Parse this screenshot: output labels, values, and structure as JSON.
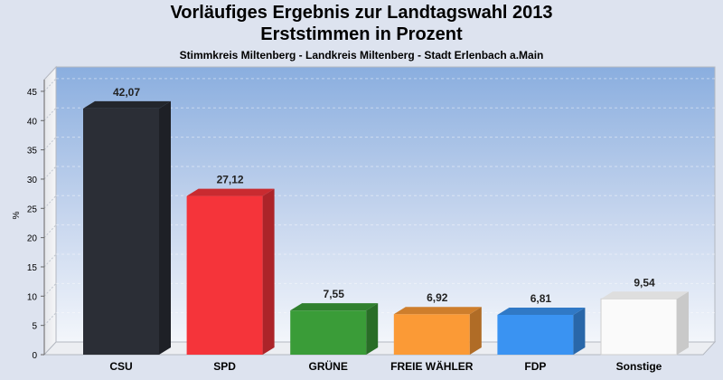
{
  "header": {
    "title": "Vorläufiges Ergebnis zur Landtagswahl 2013",
    "subtitle": "Erststimmen in Prozent",
    "region": "Stimmkreis Miltenberg - Landkreis Miltenberg - Stadt Erlenbach a.Main"
  },
  "chart_data": {
    "type": "bar",
    "title": "Vorläufiges Ergebnis zur Landtagswahl 2013",
    "subtitle": "Erststimmen in Prozent",
    "ylabel": "%",
    "xlabel": "",
    "ylim": [
      0,
      47
    ],
    "yticks": [
      0,
      5,
      10,
      15,
      20,
      25,
      30,
      35,
      40,
      45
    ],
    "grid": true,
    "categories": [
      "CSU",
      "SPD",
      "GRÜNE",
      "FREIE WÄHLER",
      "FDP",
      "Sonstige"
    ],
    "values": [
      42.07,
      27.12,
      7.55,
      6.92,
      6.81,
      9.54
    ],
    "value_labels": [
      "42,07",
      "27,12",
      "7,55",
      "6,92",
      "6,81",
      "9,54"
    ],
    "colors": [
      "#2b2e36",
      "#f5343a",
      "#3a9c38",
      "#fb9a36",
      "#3a93f2",
      "#fafafa"
    ]
  }
}
